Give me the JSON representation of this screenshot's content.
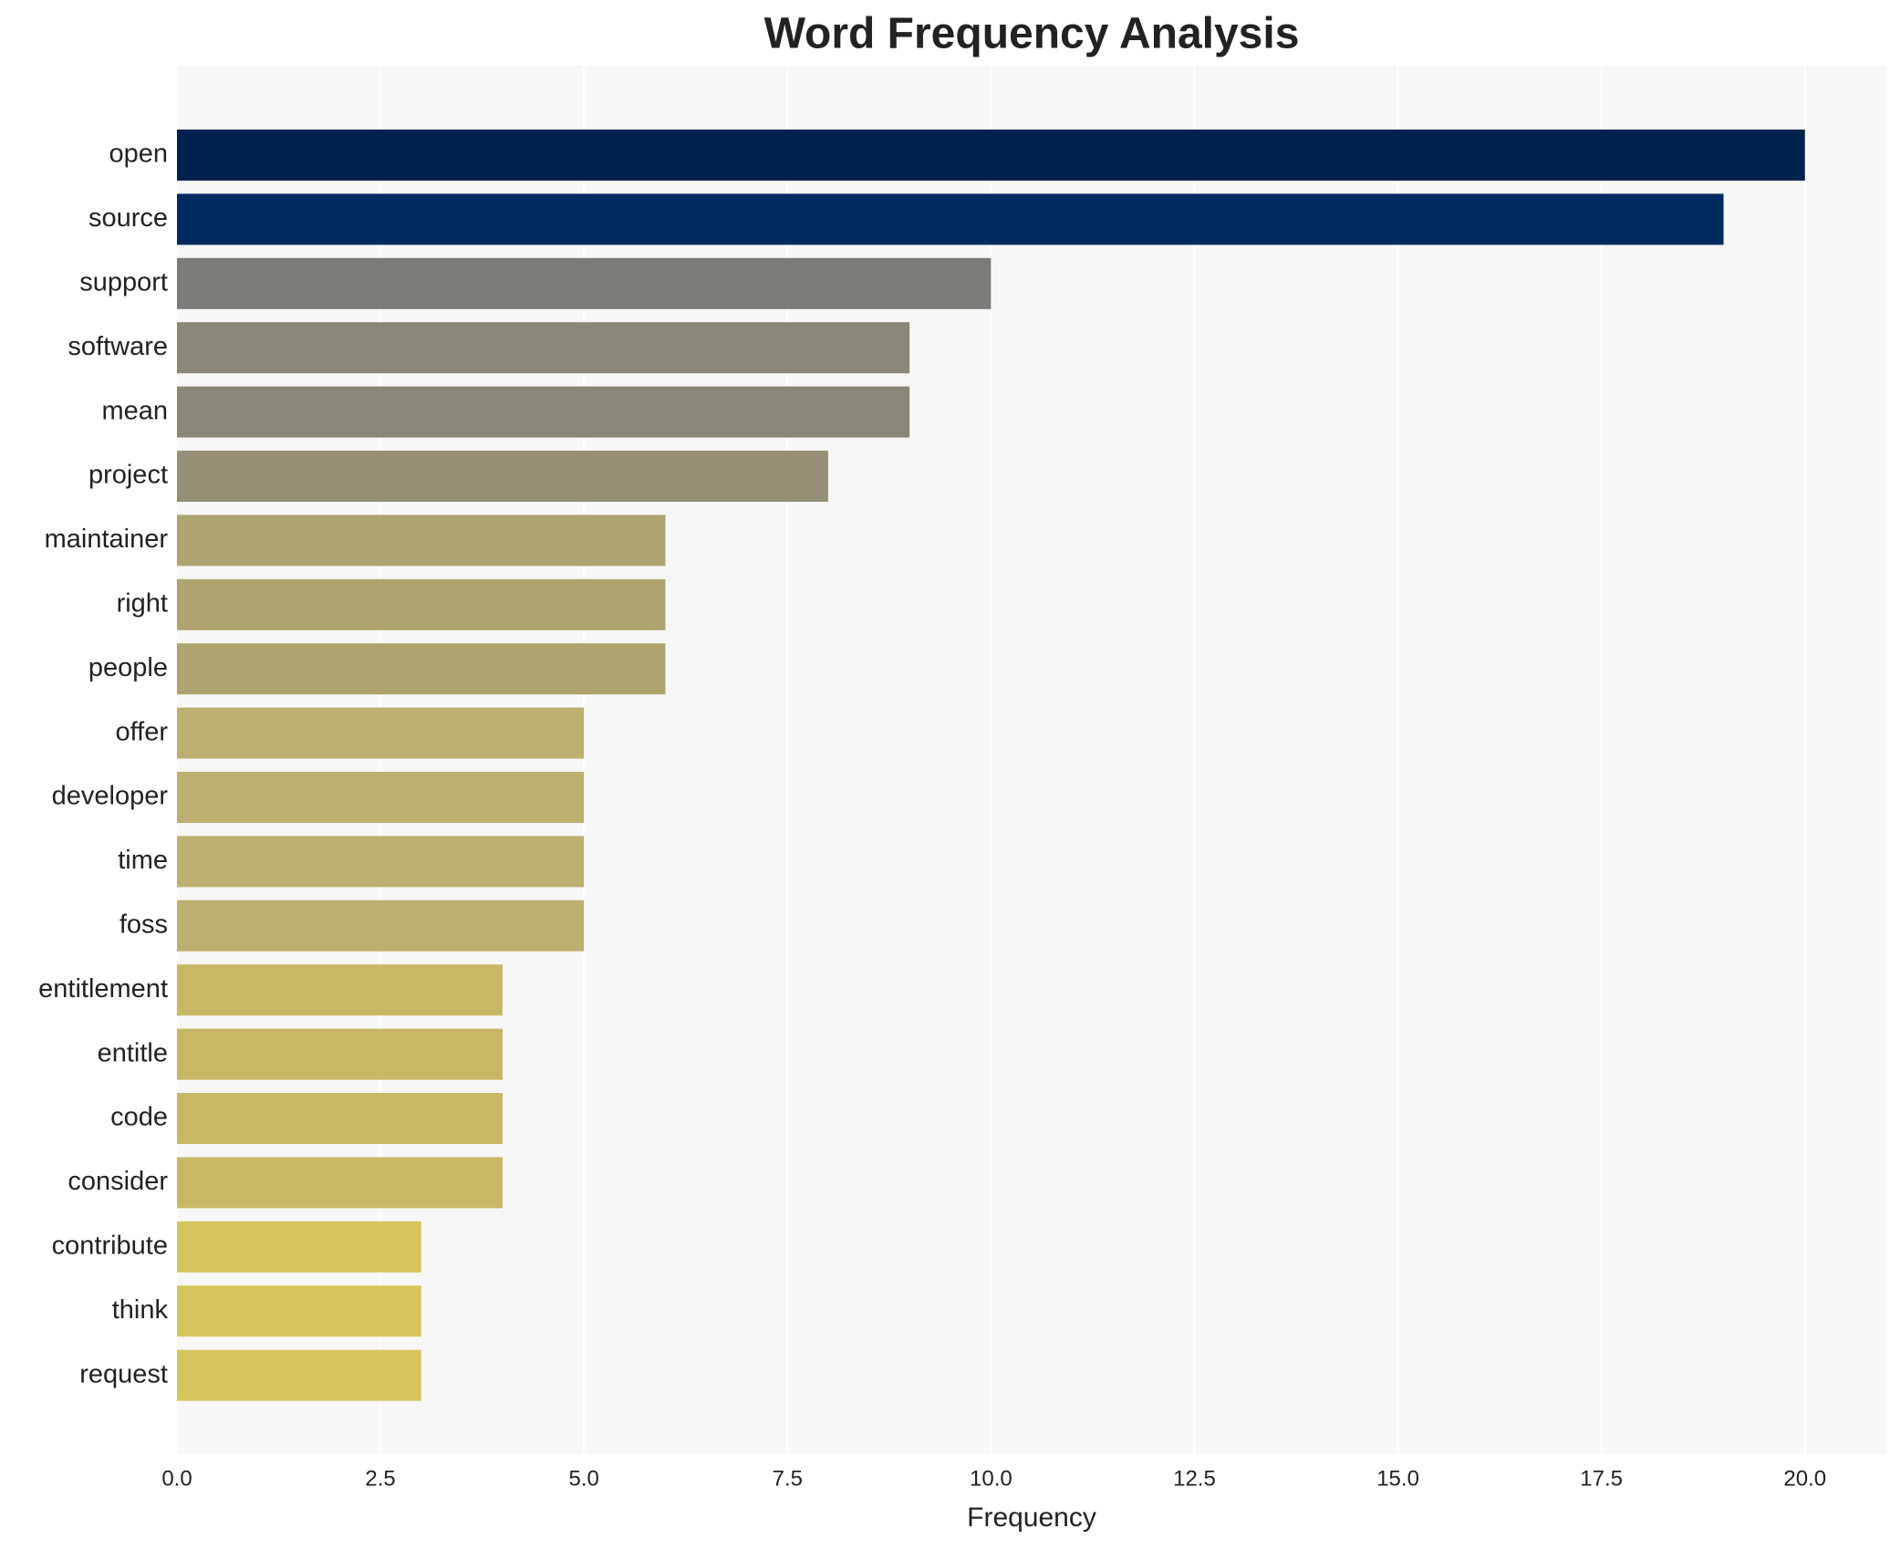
{
  "chart_data": {
    "type": "barh",
    "title": "Word Frequency Analysis",
    "xlabel": "Frequency",
    "categories": [
      "open",
      "source",
      "support",
      "software",
      "mean",
      "project",
      "maintainer",
      "right",
      "people",
      "offer",
      "developer",
      "time",
      "foss",
      "entitlement",
      "entitle",
      "code",
      "consider",
      "contribute",
      "think",
      "request"
    ],
    "values": [
      20,
      19,
      10,
      9,
      9,
      8,
      6,
      6,
      6,
      5,
      5,
      5,
      5,
      4,
      4,
      4,
      4,
      3,
      3,
      3
    ],
    "colors": [
      "#00214d",
      "#002a60",
      "#7c7b78",
      "#8a8778",
      "#8a8778",
      "#958f75",
      "#afa470",
      "#afa470",
      "#afa470",
      "#bcaf6f",
      "#bcaf6f",
      "#bcaf6f",
      "#bcaf6f",
      "#c8b866",
      "#c8b866",
      "#c8b866",
      "#c8b866",
      "#d6c55e",
      "#d6c55e",
      "#d6c55e"
    ],
    "xlim": [
      0,
      21
    ],
    "xticks": [
      {
        "value": 0,
        "label": "0.0"
      },
      2.5,
      {
        "value": 5,
        "label": "5.0"
      },
      7.5,
      {
        "value": 10,
        "label": "10.0"
      },
      12.5,
      {
        "value": 15,
        "label": "15.0"
      },
      17.5,
      {
        "value": 20,
        "label": "20.0"
      }
    ],
    "grid": true
  }
}
